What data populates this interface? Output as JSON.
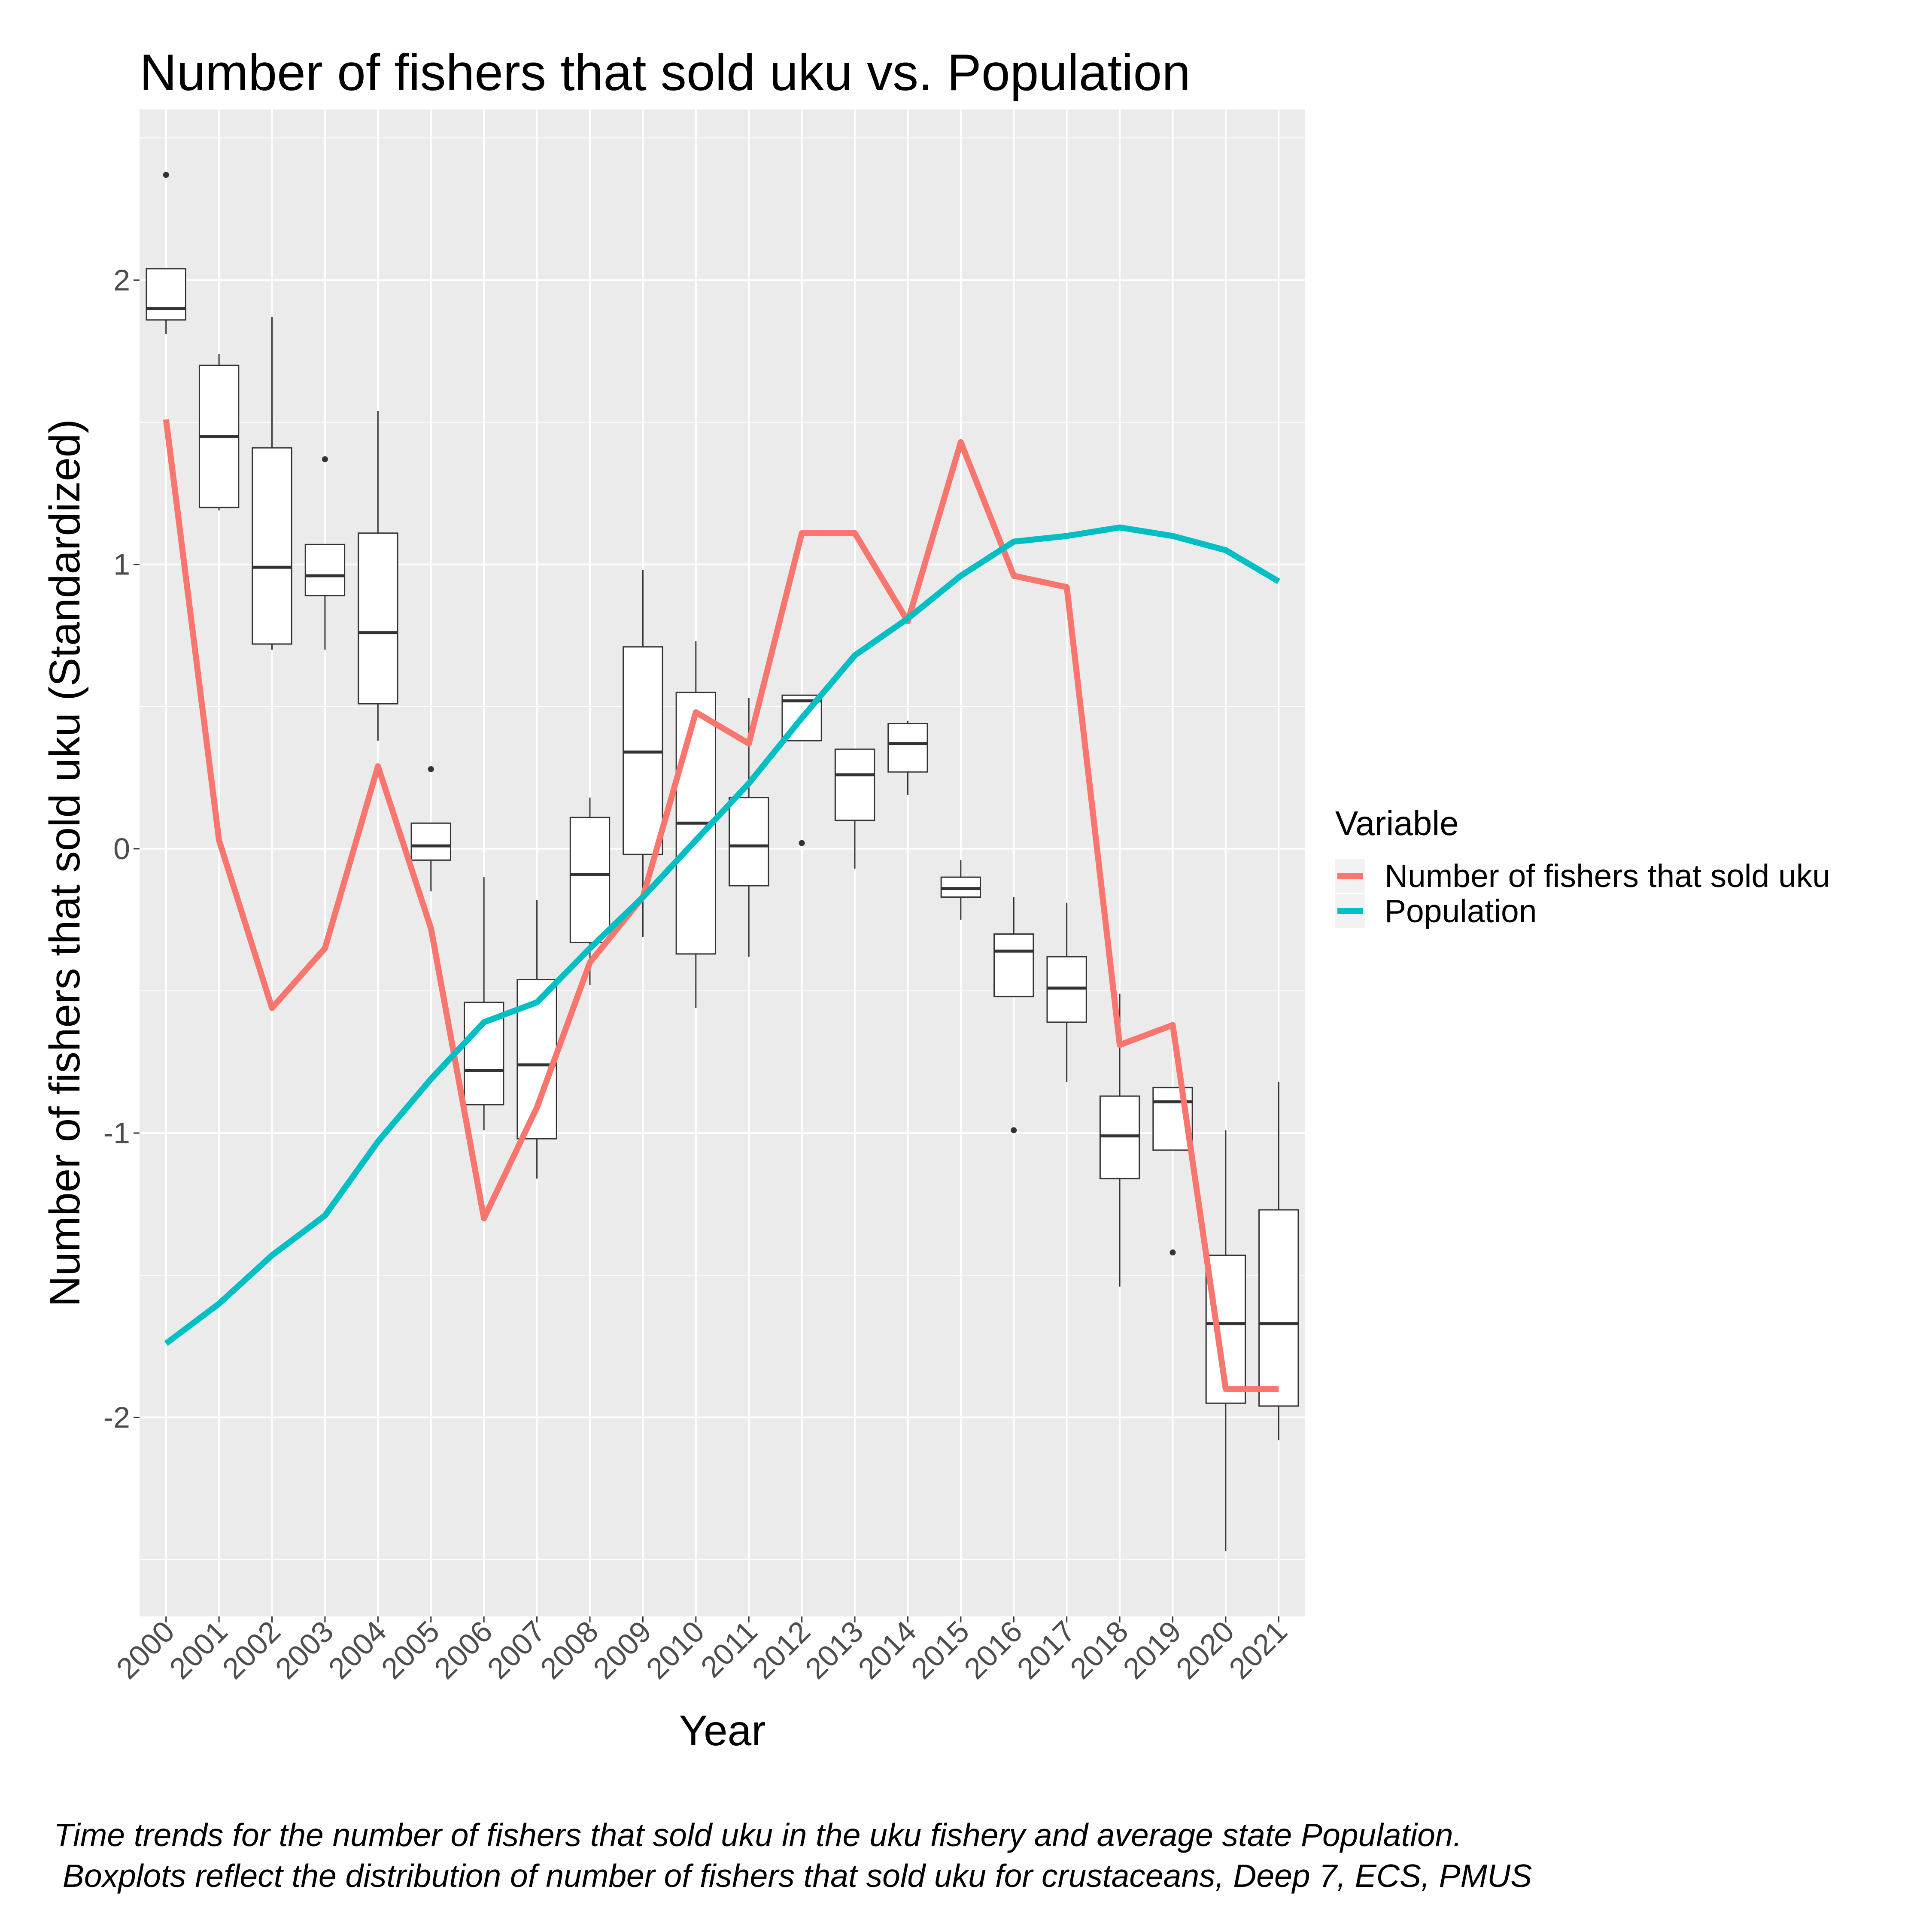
{
  "chart_data": {
    "type": "line",
    "title": "Number of fishers that sold uku vs. Population",
    "xlabel": "Year",
    "ylabel": "Number of fishers that sold uku (Standardized)",
    "ylim": [
      -2.7,
      2.6
    ],
    "yticks": [
      -2,
      -1,
      0,
      1,
      2
    ],
    "yticklabels": [
      "-2",
      "-1",
      "0",
      "1",
      "2"
    ],
    "categories": [
      "2000",
      "2001",
      "2002",
      "2003",
      "2004",
      "2005",
      "2006",
      "2007",
      "2008",
      "2009",
      "2010",
      "2011",
      "2012",
      "2013",
      "2014",
      "2015",
      "2016",
      "2017",
      "2018",
      "2019",
      "2020",
      "2021"
    ],
    "grid": true,
    "panel_background": "#ebebeb",
    "legend": {
      "title": "Variable",
      "position": "right"
    },
    "series": [
      {
        "name": "Number of fishers that sold uku",
        "color": "#f8766d",
        "values": [
          1.51,
          0.03,
          -0.56,
          -0.35,
          0.29,
          -0.28,
          -1.3,
          -0.91,
          -0.4,
          -0.17,
          0.48,
          0.37,
          1.11,
          1.11,
          0.8,
          1.43,
          0.96,
          0.92,
          -0.69,
          -0.62,
          -1.9,
          -1.9
        ]
      },
      {
        "name": "Population",
        "color": "#00bfc4",
        "values": [
          -1.74,
          -1.6,
          -1.43,
          -1.29,
          -1.03,
          -0.81,
          -0.61,
          -0.54,
          -0.35,
          -0.17,
          0.03,
          0.23,
          0.46,
          0.68,
          0.81,
          0.96,
          1.08,
          1.1,
          1.13,
          1.1,
          1.05,
          0.94
        ]
      }
    ],
    "boxplots": [
      {
        "year": "2000",
        "lower": 1.81,
        "q1": 1.86,
        "median": 1.9,
        "q3": 2.04,
        "upper": 2.04,
        "outliers": [
          2.37
        ]
      },
      {
        "year": "2001",
        "lower": 1.19,
        "q1": 1.2,
        "median": 1.45,
        "q3": 1.7,
        "upper": 1.74,
        "outliers": []
      },
      {
        "year": "2002",
        "lower": 0.7,
        "q1": 0.72,
        "median": 0.99,
        "q3": 1.41,
        "upper": 1.87,
        "outliers": []
      },
      {
        "year": "2003",
        "lower": 0.7,
        "q1": 0.89,
        "median": 0.96,
        "q3": 1.07,
        "upper": 1.07,
        "outliers": [
          1.37
        ]
      },
      {
        "year": "2004",
        "lower": 0.38,
        "q1": 0.51,
        "median": 0.76,
        "q3": 1.11,
        "upper": 1.54,
        "outliers": []
      },
      {
        "year": "2005",
        "lower": -0.15,
        "q1": -0.04,
        "median": 0.01,
        "q3": 0.09,
        "upper": 0.09,
        "outliers": [
          0.28
        ]
      },
      {
        "year": "2006",
        "lower": -0.99,
        "q1": -0.9,
        "median": -0.78,
        "q3": -0.54,
        "upper": -0.1,
        "outliers": []
      },
      {
        "year": "2007",
        "lower": -1.16,
        "q1": -1.02,
        "median": -0.76,
        "q3": -0.46,
        "upper": -0.18,
        "outliers": []
      },
      {
        "year": "2008",
        "lower": -0.48,
        "q1": -0.33,
        "median": -0.09,
        "q3": 0.11,
        "upper": 0.18,
        "outliers": []
      },
      {
        "year": "2009",
        "lower": -0.31,
        "q1": -0.02,
        "median": 0.34,
        "q3": 0.71,
        "upper": 0.98,
        "outliers": []
      },
      {
        "year": "2010",
        "lower": -0.56,
        "q1": -0.37,
        "median": 0.09,
        "q3": 0.55,
        "upper": 0.73,
        "outliers": []
      },
      {
        "year": "2011",
        "lower": -0.38,
        "q1": -0.13,
        "median": 0.01,
        "q3": 0.18,
        "upper": 0.53,
        "outliers": []
      },
      {
        "year": "2012",
        "lower": 0.38,
        "q1": 0.38,
        "median": 0.52,
        "q3": 0.54,
        "upper": 0.54,
        "outliers": [
          0.02
        ]
      },
      {
        "year": "2013",
        "lower": -0.07,
        "q1": 0.1,
        "median": 0.26,
        "q3": 0.35,
        "upper": 0.35,
        "outliers": []
      },
      {
        "year": "2014",
        "lower": 0.19,
        "q1": 0.27,
        "median": 0.37,
        "q3": 0.44,
        "upper": 0.45,
        "outliers": [
          0.8
        ]
      },
      {
        "year": "2015",
        "lower": -0.25,
        "q1": -0.17,
        "median": -0.14,
        "q3": -0.1,
        "upper": -0.04,
        "outliers": []
      },
      {
        "year": "2016",
        "lower": -0.52,
        "q1": -0.52,
        "median": -0.36,
        "q3": -0.3,
        "upper": -0.17,
        "outliers": [
          -0.99
        ]
      },
      {
        "year": "2017",
        "lower": -0.82,
        "q1": -0.61,
        "median": -0.49,
        "q3": -0.38,
        "upper": -0.19,
        "outliers": []
      },
      {
        "year": "2018",
        "lower": -1.54,
        "q1": -1.16,
        "median": -1.01,
        "q3": -0.87,
        "upper": -0.51,
        "outliers": []
      },
      {
        "year": "2019",
        "lower": -1.06,
        "q1": -1.06,
        "median": -0.89,
        "q3": -0.84,
        "upper": -0.84,
        "outliers": [
          -1.42
        ]
      },
      {
        "year": "2020",
        "lower": -2.47,
        "q1": -1.95,
        "median": -1.67,
        "q3": -1.43,
        "upper": -0.99,
        "outliers": []
      },
      {
        "year": "2021",
        "lower": -2.08,
        "q1": -1.96,
        "median": -1.67,
        "q3": -1.27,
        "upper": -0.82,
        "outliers": []
      }
    ]
  },
  "caption": {
    "line1": "Time trends for the number of fishers that sold uku in the uku fishery and average state Population.",
    "line2": " Boxplots reflect the distribution of number of fishers that sold uku for crustaceans, Deep 7, ECS, PMUS"
  }
}
